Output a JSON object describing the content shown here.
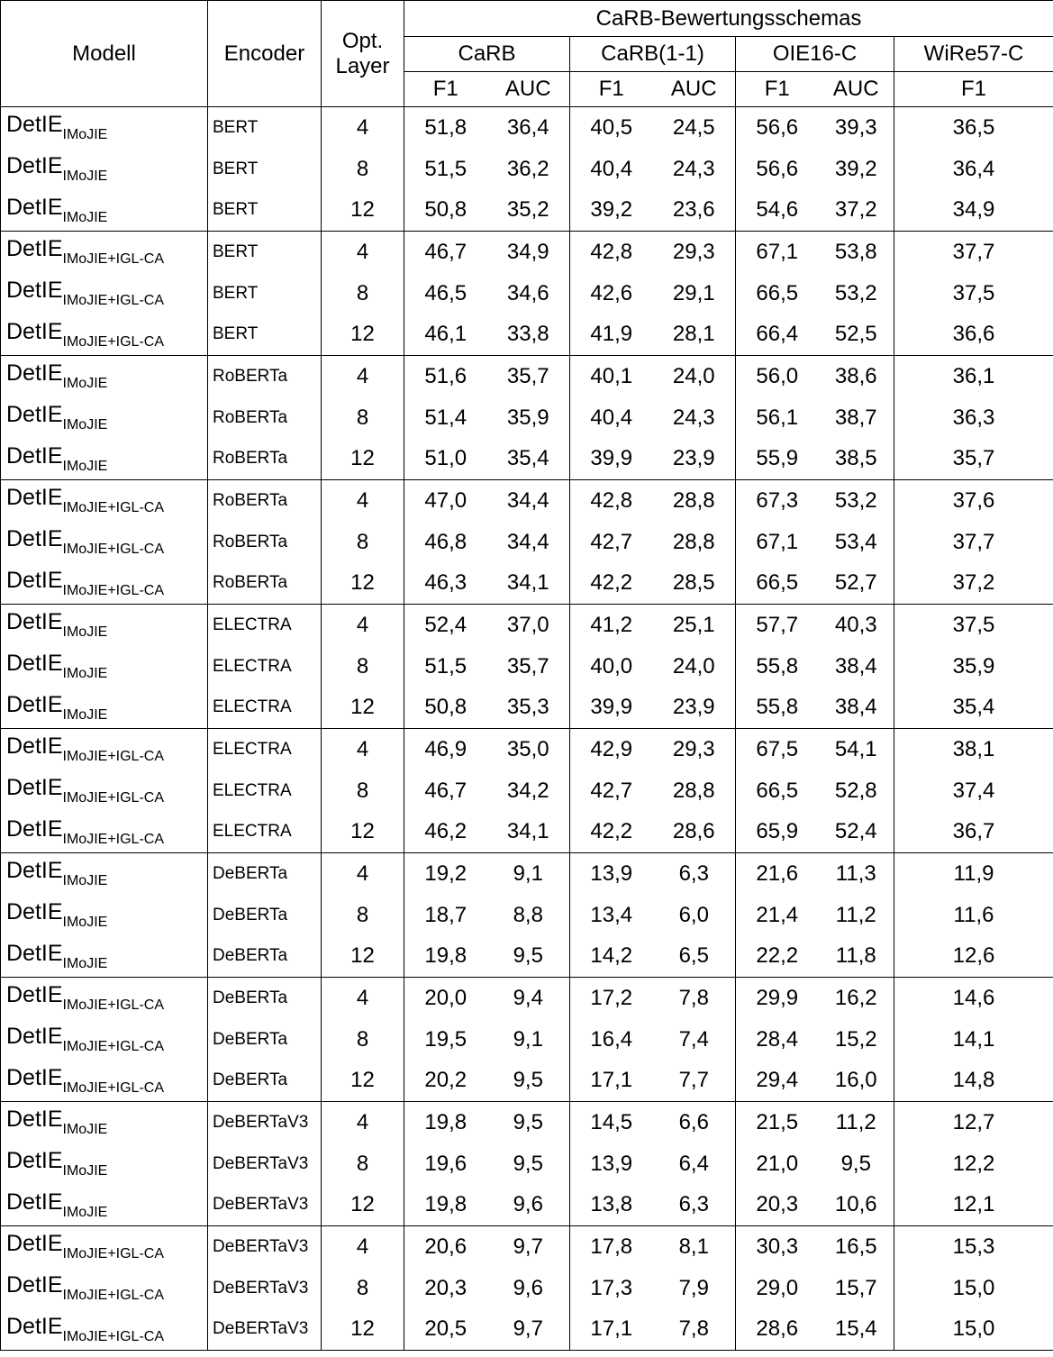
{
  "header": {
    "model": "Modell",
    "encoder": "Encoder",
    "layer_line1": "Opt.",
    "layer_line2": "Layer",
    "schemes_title": "CaRB-Bewertungsschemas",
    "schemes": [
      "CaRB",
      "CaRB(1-1)",
      "OIE16-C",
      "WiRe57-C"
    ],
    "f1": "F1",
    "auc": "AUC"
  },
  "rows": [
    {
      "model": "DetIE",
      "sub": "IMoJIE",
      "encoder": "BERT",
      "layer": "4",
      "carb_f1": "51,8",
      "carb_auc": "36,4",
      "carb11_f1": "40,5",
      "carb11_auc": "24,5",
      "oie_f1": "56,6",
      "oie_auc": "39,3",
      "wire_f1": "36,5"
    },
    {
      "model": "DetIE",
      "sub": "IMoJIE",
      "encoder": "BERT",
      "layer": "8",
      "carb_f1": "51,5",
      "carb_auc": "36,2",
      "carb11_f1": "40,4",
      "carb11_auc": "24,3",
      "oie_f1": "56,6",
      "oie_auc": "39,2",
      "wire_f1": "36,4"
    },
    {
      "model": "DetIE",
      "sub": "IMoJIE",
      "encoder": "BERT",
      "layer": "12",
      "carb_f1": "50,8",
      "carb_auc": "35,2",
      "carb11_f1": "39,2",
      "carb11_auc": "23,6",
      "oie_f1": "54,6",
      "oie_auc": "37,2",
      "wire_f1": "34,9"
    },
    {
      "model": "DetIE",
      "sub": "IMoJIE+IGL-CA",
      "encoder": "BERT",
      "layer": "4",
      "carb_f1": "46,7",
      "carb_auc": "34,9",
      "carb11_f1": "42,8",
      "carb11_auc": "29,3",
      "oie_f1": "67,1",
      "oie_auc": "53,8",
      "wire_f1": "37,7"
    },
    {
      "model": "DetIE",
      "sub": "IMoJIE+IGL-CA",
      "encoder": "BERT",
      "layer": "8",
      "carb_f1": "46,5",
      "carb_auc": "34,6",
      "carb11_f1": "42,6",
      "carb11_auc": "29,1",
      "oie_f1": "66,5",
      "oie_auc": "53,2",
      "wire_f1": "37,5"
    },
    {
      "model": "DetIE",
      "sub": "IMoJIE+IGL-CA",
      "encoder": "BERT",
      "layer": "12",
      "carb_f1": "46,1",
      "carb_auc": "33,8",
      "carb11_f1": "41,9",
      "carb11_auc": "28,1",
      "oie_f1": "66,4",
      "oie_auc": "52,5",
      "wire_f1": "36,6"
    },
    {
      "model": "DetIE",
      "sub": "IMoJIE",
      "encoder": "RoBERTa",
      "layer": "4",
      "carb_f1": "51,6",
      "carb_auc": "35,7",
      "carb11_f1": "40,1",
      "carb11_auc": "24,0",
      "oie_f1": "56,0",
      "oie_auc": "38,6",
      "wire_f1": "36,1"
    },
    {
      "model": "DetIE",
      "sub": "IMoJIE",
      "encoder": "RoBERTa",
      "layer": "8",
      "carb_f1": "51,4",
      "carb_auc": "35,9",
      "carb11_f1": "40,4",
      "carb11_auc": "24,3",
      "oie_f1": "56,1",
      "oie_auc": "38,7",
      "wire_f1": "36,3"
    },
    {
      "model": "DetIE",
      "sub": "IMoJIE",
      "encoder": "RoBERTa",
      "layer": "12",
      "carb_f1": "51,0",
      "carb_auc": "35,4",
      "carb11_f1": "39,9",
      "carb11_auc": "23,9",
      "oie_f1": "55,9",
      "oie_auc": "38,5",
      "wire_f1": "35,7"
    },
    {
      "model": "DetIE",
      "sub": "IMoJIE+IGL-CA",
      "encoder": "RoBERTa",
      "layer": "4",
      "carb_f1": "47,0",
      "carb_auc": "34,4",
      "carb11_f1": "42,8",
      "carb11_auc": "28,8",
      "oie_f1": "67,3",
      "oie_auc": "53,2",
      "wire_f1": "37,6"
    },
    {
      "model": "DetIE",
      "sub": "IMoJIE+IGL-CA",
      "encoder": "RoBERTa",
      "layer": "8",
      "carb_f1": "46,8",
      "carb_auc": "34,4",
      "carb11_f1": "42,7",
      "carb11_auc": "28,8",
      "oie_f1": "67,1",
      "oie_auc": "53,4",
      "wire_f1": "37,7"
    },
    {
      "model": "DetIE",
      "sub": "IMoJIE+IGL-CA",
      "encoder": "RoBERTa",
      "layer": "12",
      "carb_f1": "46,3",
      "carb_auc": "34,1",
      "carb11_f1": "42,2",
      "carb11_auc": "28,5",
      "oie_f1": "66,5",
      "oie_auc": "52,7",
      "wire_f1": "37,2"
    },
    {
      "model": "DetIE",
      "sub": "IMoJIE",
      "encoder": "ELECTRA",
      "layer": "4",
      "carb_f1": "52,4",
      "carb_auc": "37,0",
      "carb11_f1": "41,2",
      "carb11_auc": "25,1",
      "oie_f1": "57,7",
      "oie_auc": "40,3",
      "wire_f1": "37,5"
    },
    {
      "model": "DetIE",
      "sub": "IMoJIE",
      "encoder": "ELECTRA",
      "layer": "8",
      "carb_f1": "51,5",
      "carb_auc": "35,7",
      "carb11_f1": "40,0",
      "carb11_auc": "24,0",
      "oie_f1": "55,8",
      "oie_auc": "38,4",
      "wire_f1": "35,9"
    },
    {
      "model": "DetIE",
      "sub": "IMoJIE",
      "encoder": "ELECTRA",
      "layer": "12",
      "carb_f1": "50,8",
      "carb_auc": "35,3",
      "carb11_f1": "39,9",
      "carb11_auc": "23,9",
      "oie_f1": "55,8",
      "oie_auc": "38,4",
      "wire_f1": "35,4"
    },
    {
      "model": "DetIE",
      "sub": "IMoJIE+IGL-CA",
      "encoder": "ELECTRA",
      "layer": "4",
      "carb_f1": "46,9",
      "carb_auc": "35,0",
      "carb11_f1": "42,9",
      "carb11_auc": "29,3",
      "oie_f1": "67,5",
      "oie_auc": "54,1",
      "wire_f1": "38,1"
    },
    {
      "model": "DetIE",
      "sub": "IMoJIE+IGL-CA",
      "encoder": "ELECTRA",
      "layer": "8",
      "carb_f1": "46,7",
      "carb_auc": "34,2",
      "carb11_f1": "42,7",
      "carb11_auc": "28,8",
      "oie_f1": "66,5",
      "oie_auc": "52,8",
      "wire_f1": "37,4"
    },
    {
      "model": "DetIE",
      "sub": "IMoJIE+IGL-CA",
      "encoder": "ELECTRA",
      "layer": "12",
      "carb_f1": "46,2",
      "carb_auc": "34,1",
      "carb11_f1": "42,2",
      "carb11_auc": "28,6",
      "oie_f1": "65,9",
      "oie_auc": "52,4",
      "wire_f1": "36,7"
    },
    {
      "model": "DetIE",
      "sub": "IMoJIE",
      "encoder": "DeBERTa",
      "layer": "4",
      "carb_f1": "19,2",
      "carb_auc": "9,1",
      "carb11_f1": "13,9",
      "carb11_auc": "6,3",
      "oie_f1": "21,6",
      "oie_auc": "11,3",
      "wire_f1": "11,9"
    },
    {
      "model": "DetIE",
      "sub": "IMoJIE",
      "encoder": "DeBERTa",
      "layer": "8",
      "carb_f1": "18,7",
      "carb_auc": "8,8",
      "carb11_f1": "13,4",
      "carb11_auc": "6,0",
      "oie_f1": "21,4",
      "oie_auc": "11,2",
      "wire_f1": "11,6"
    },
    {
      "model": "DetIE",
      "sub": "IMoJIE",
      "encoder": "DeBERTa",
      "layer": "12",
      "carb_f1": "19,8",
      "carb_auc": "9,5",
      "carb11_f1": "14,2",
      "carb11_auc": "6,5",
      "oie_f1": "22,2",
      "oie_auc": "11,8",
      "wire_f1": "12,6"
    },
    {
      "model": "DetIE",
      "sub": "IMoJIE+IGL-CA",
      "encoder": "DeBERTa",
      "layer": "4",
      "carb_f1": "20,0",
      "carb_auc": "9,4",
      "carb11_f1": "17,2",
      "carb11_auc": "7,8",
      "oie_f1": "29,9",
      "oie_auc": "16,2",
      "wire_f1": "14,6"
    },
    {
      "model": "DetIE",
      "sub": "IMoJIE+IGL-CA",
      "encoder": "DeBERTa",
      "layer": "8",
      "carb_f1": "19,5",
      "carb_auc": "9,1",
      "carb11_f1": "16,4",
      "carb11_auc": "7,4",
      "oie_f1": "28,4",
      "oie_auc": "15,2",
      "wire_f1": "14,1"
    },
    {
      "model": "DetIE",
      "sub": "IMoJIE+IGL-CA",
      "encoder": "DeBERTa",
      "layer": "12",
      "carb_f1": "20,2",
      "carb_auc": "9,5",
      "carb11_f1": "17,1",
      "carb11_auc": "7,7",
      "oie_f1": "29,4",
      "oie_auc": "16,0",
      "wire_f1": "14,8"
    },
    {
      "model": "DetIE",
      "sub": "IMoJIE",
      "encoder": "DeBERTaV3",
      "layer": "4",
      "carb_f1": "19,8",
      "carb_auc": "9,5",
      "carb11_f1": "14,5",
      "carb11_auc": "6,6",
      "oie_f1": "21,5",
      "oie_auc": "11,2",
      "wire_f1": "12,7"
    },
    {
      "model": "DetIE",
      "sub": "IMoJIE",
      "encoder": "DeBERTaV3",
      "layer": "8",
      "carb_f1": "19,6",
      "carb_auc": "9,5",
      "carb11_f1": "13,9",
      "carb11_auc": "6,4",
      "oie_f1": "21,0",
      "oie_auc": "9,5",
      "wire_f1": "12,2"
    },
    {
      "model": "DetIE",
      "sub": "IMoJIE",
      "encoder": "DeBERTaV3",
      "layer": "12",
      "carb_f1": "19,8",
      "carb_auc": "9,6",
      "carb11_f1": "13,8",
      "carb11_auc": "6,3",
      "oie_f1": "20,3",
      "oie_auc": "10,6",
      "wire_f1": "12,1"
    },
    {
      "model": "DetIE",
      "sub": "IMoJIE+IGL-CA",
      "encoder": "DeBERTaV3",
      "layer": "4",
      "carb_f1": "20,6",
      "carb_auc": "9,7",
      "carb11_f1": "17,8",
      "carb11_auc": "8,1",
      "oie_f1": "30,3",
      "oie_auc": "16,5",
      "wire_f1": "15,3"
    },
    {
      "model": "DetIE",
      "sub": "IMoJIE+IGL-CA",
      "encoder": "DeBERTaV3",
      "layer": "8",
      "carb_f1": "20,3",
      "carb_auc": "9,6",
      "carb11_f1": "17,3",
      "carb11_auc": "7,9",
      "oie_f1": "29,0",
      "oie_auc": "15,7",
      "wire_f1": "15,0"
    },
    {
      "model": "DetIE",
      "sub": "IMoJIE+IGL-CA",
      "encoder": "DeBERTaV3",
      "layer": "12",
      "carb_f1": "20,5",
      "carb_auc": "9,7",
      "carb11_f1": "17,1",
      "carb11_auc": "7,8",
      "oie_f1": "28,6",
      "oie_auc": "15,4",
      "wire_f1": "15,0"
    }
  ]
}
